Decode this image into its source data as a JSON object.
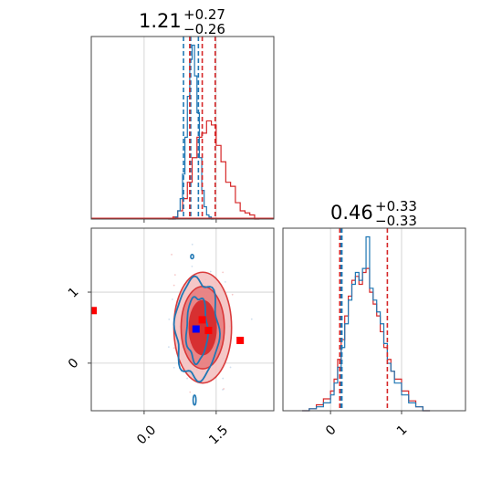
{
  "colors": {
    "blue": "#1f77b4",
    "red": "#d62728",
    "marker_red": "#ff0000",
    "marker_blue": "#0000ff"
  },
  "chart_data": {
    "type": "corner",
    "parameters": [
      {
        "id": "p1",
        "range": [
          -1.1,
          2.7
        ]
      },
      {
        "id": "p2",
        "range": [
          -0.67,
          1.9
        ]
      }
    ],
    "marginals": [
      {
        "parameter": "p1",
        "title": {
          "value": "1.21",
          "plus": "+0.27",
          "minus": "−0.26"
        },
        "blue_quantiles": [
          0.82,
          0.97,
          1.13
        ],
        "red_quantiles": [
          0.95,
          1.21,
          1.48
        ],
        "blue_hist": {
          "x": [
            0.6,
            0.65,
            0.7,
            0.75,
            0.8,
            0.85,
            0.9,
            0.95,
            1.0,
            1.05,
            1.1,
            1.15,
            1.2,
            1.25,
            1.3,
            1.35,
            1.4
          ],
          "y": [
            0,
            1,
            4,
            10,
            22,
            40,
            60,
            78,
            85,
            70,
            52,
            30,
            14,
            6,
            2,
            1,
            0
          ]
        },
        "red_hist": {
          "x": [
            0.5,
            0.6,
            0.7,
            0.8,
            0.9,
            1.0,
            1.1,
            1.2,
            1.3,
            1.4,
            1.5,
            1.6,
            1.7,
            1.8,
            1.9,
            2.0,
            2.1,
            2.2,
            2.3
          ],
          "y": [
            0,
            1,
            4,
            10,
            18,
            30,
            40,
            42,
            48,
            46,
            36,
            28,
            18,
            16,
            8,
            4,
            3,
            2,
            0
          ]
        }
      },
      {
        "parameter": "p2",
        "title": {
          "value": "0.46",
          "plus": "+0.33",
          "minus": "−0.33"
        },
        "blue_quantiles": [
          0.15,
          0.16
        ],
        "red_quantiles": [
          0.13,
          0.8
        ],
        "blue_hist": {
          "x": [
            -0.4,
            -0.3,
            -0.2,
            -0.1,
            0.0,
            0.05,
            0.1,
            0.15,
            0.2,
            0.25,
            0.3,
            0.35,
            0.4,
            0.45,
            0.5,
            0.55,
            0.6,
            0.65,
            0.7,
            0.75,
            0.8,
            0.85,
            0.9,
            1.0,
            1.1,
            1.2,
            1.3
          ],
          "y": [
            0,
            1,
            2,
            4,
            8,
            14,
            22,
            32,
            44,
            56,
            64,
            70,
            66,
            72,
            88,
            62,
            56,
            50,
            44,
            34,
            24,
            20,
            14,
            8,
            4,
            2,
            0
          ]
        },
        "red_hist": {
          "x": [
            -0.4,
            -0.3,
            -0.2,
            -0.1,
            0.0,
            0.05,
            0.1,
            0.15,
            0.2,
            0.25,
            0.3,
            0.35,
            0.4,
            0.45,
            0.5,
            0.55,
            0.6,
            0.65,
            0.7,
            0.75,
            0.8,
            0.85,
            0.9,
            1.0,
            1.1,
            1.2,
            1.3
          ],
          "y": [
            0,
            1,
            3,
            6,
            10,
            16,
            26,
            36,
            48,
            58,
            66,
            68,
            64,
            70,
            72,
            60,
            54,
            48,
            40,
            32,
            26,
            20,
            16,
            10,
            5,
            2,
            0
          ]
        }
      }
    ],
    "joint": {
      "x_parameter": "p1",
      "y_parameter": "p2",
      "x_ticks": [
        0.0,
        1.5
      ],
      "x_tick_labels": [
        "0.0",
        "1.5"
      ],
      "y_ticks": [
        0,
        1
      ],
      "y_tick_labels": [
        "0",
        "1"
      ],
      "red_contours": [
        {
          "cx": 1.22,
          "cy": 0.5,
          "rx": 0.28,
          "ry": 0.38
        },
        {
          "cx": 1.22,
          "cy": 0.5,
          "rx": 0.45,
          "ry": 0.58
        },
        {
          "cx": 1.22,
          "cy": 0.5,
          "rx": 0.6,
          "ry": 0.78
        }
      ],
      "blue_contours": [
        {
          "cx": 1.1,
          "cy": 0.48,
          "rx": 0.22,
          "ry": 0.46
        },
        {
          "cx": 1.1,
          "cy": 0.48,
          "rx": 0.45,
          "ry": 0.7
        }
      ],
      "blue_outlier_contours": [
        {
          "cx": 1.05,
          "cy": -0.52,
          "rx": 0.03,
          "ry": 0.07
        },
        {
          "cx": 1.0,
          "cy": 1.5,
          "rx": 0.03,
          "ry": 0.03
        }
      ],
      "red_markers": [
        {
          "x": -1.06,
          "y": 0.74
        },
        {
          "x": 1.21,
          "y": 0.61
        },
        {
          "x": 1.34,
          "y": 0.46
        },
        {
          "x": 2.0,
          "y": 0.32
        }
      ],
      "blue_markers": [
        {
          "x": 1.08,
          "y": 0.48
        }
      ]
    },
    "marginal_x_ticks": {
      "p2": {
        "ticks": [
          0,
          1
        ],
        "labels": [
          "0",
          "1"
        ]
      }
    }
  }
}
